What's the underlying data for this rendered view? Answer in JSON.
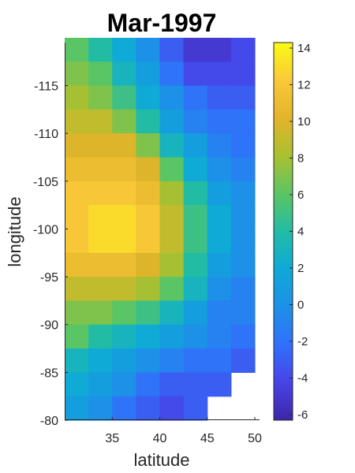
{
  "chart_data": {
    "type": "heatmap",
    "title": "Mar-1997",
    "xlabel": "latitude",
    "ylabel": "longitude",
    "xlim": [
      30,
      50.5
    ],
    "ylim": [
      -80,
      -119.5
    ],
    "xticks": [
      35,
      40,
      45,
      50
    ],
    "xtick_labels": [
      "35",
      "40",
      "45",
      "50"
    ],
    "yticks": [
      -115,
      -110,
      -105,
      -100,
      -95,
      -90,
      -85,
      -80
    ],
    "ytick_labels": [
      "-115",
      "-110",
      "-105",
      "-100",
      "-95",
      "-90",
      "-85",
      "-80"
    ],
    "x": [
      31.25,
      33.75,
      36.25,
      38.75,
      41.25,
      43.75,
      46.25,
      48.75
    ],
    "y": [
      -118.75,
      -116.25,
      -113.75,
      -111.25,
      -108.75,
      -106.25,
      -103.75,
      -101.25,
      -98.75,
      -96.25,
      -93.75,
      -91.25,
      -88.75,
      -86.25,
      -83.75,
      -81.25
    ],
    "z": [
      [
        6,
        4,
        2,
        0,
        -3,
        -5,
        -5,
        -4
      ],
      [
        7,
        6,
        3,
        1,
        -2,
        -4,
        -4,
        -4
      ],
      [
        8,
        7,
        5,
        2,
        0,
        -2,
        -3,
        -3
      ],
      [
        9,
        9,
        7,
        4,
        1,
        -1,
        -2,
        -2
      ],
      [
        10,
        10,
        10,
        7,
        3,
        1,
        -1,
        -2
      ],
      [
        11,
        11,
        11,
        10,
        6,
        2,
        0,
        -1
      ],
      [
        12,
        12,
        12,
        11,
        8,
        4,
        1,
        0
      ],
      [
        12,
        13,
        13,
        12,
        9,
        5,
        2,
        0
      ],
      [
        12,
        13,
        13,
        12,
        9,
        5,
        2,
        0
      ],
      [
        11,
        11,
        11,
        10,
        8,
        4,
        1,
        0
      ],
      [
        9,
        9,
        9,
        8,
        6,
        3,
        0,
        -1
      ],
      [
        7,
        7,
        6,
        5,
        3,
        1,
        -1,
        -1
      ],
      [
        6,
        4,
        3,
        2,
        1,
        0,
        -1,
        -2
      ],
      [
        3,
        2,
        1,
        0,
        -1,
        -2,
        -2,
        -3
      ],
      [
        2,
        1,
        0,
        -2,
        -3,
        -3,
        -3,
        null
      ],
      [
        1,
        0,
        -2,
        -3,
        -4,
        -3,
        null,
        null
      ]
    ],
    "colorbar": {
      "limits": [
        -6.3,
        14.3
      ],
      "ticks": [
        -6,
        -4,
        -2,
        0,
        2,
        4,
        6,
        8,
        10,
        12,
        14
      ],
      "tick_labels": [
        "-6",
        "-4",
        "-2",
        "0",
        "2",
        "4",
        "6",
        "8",
        "10",
        "12",
        "14"
      ],
      "colormap": "parula"
    },
    "grid": false
  }
}
